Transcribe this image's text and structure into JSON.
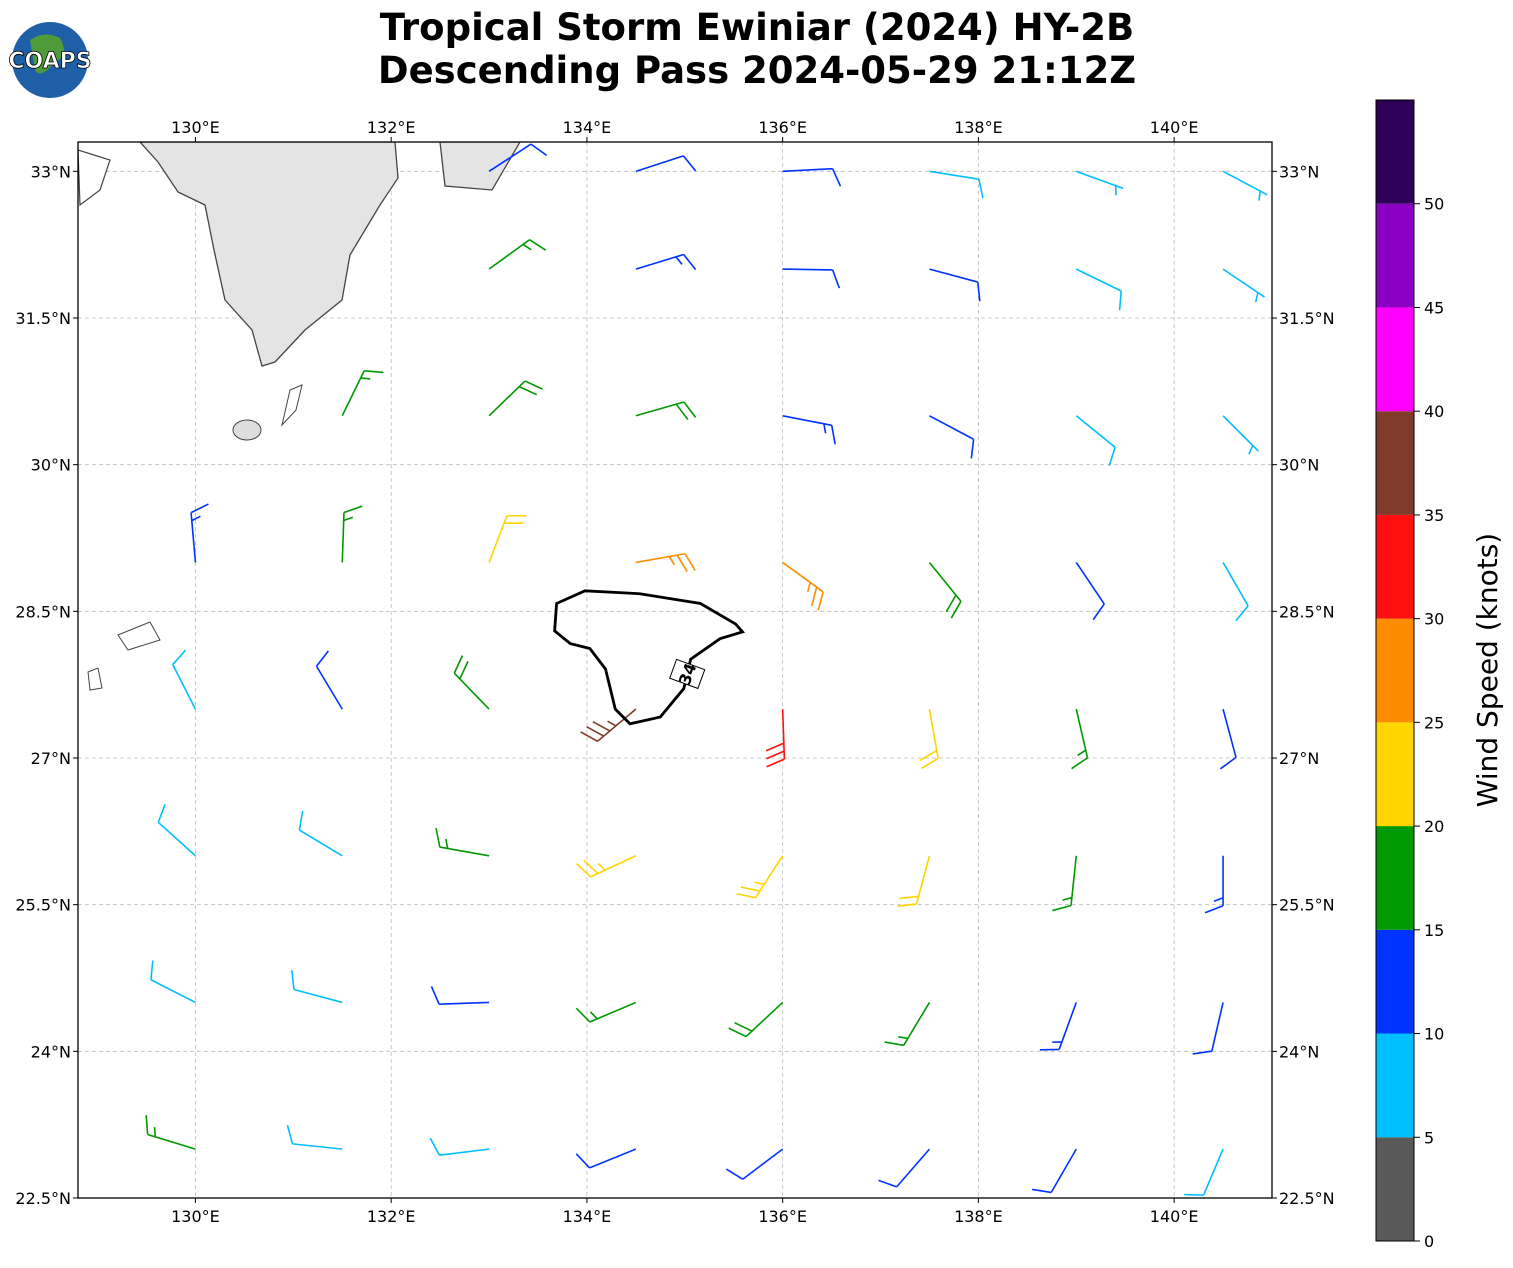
{
  "chart_data": {
    "type": "wind-barb-map",
    "title": "Tropical Storm Ewiniar (2024) HY-2B",
    "subtitle": "Descending Pass 2024-05-29 21:12Z",
    "logo": "COAPS",
    "xlim": [
      128.8,
      141.0
    ],
    "ylim": [
      22.5,
      33.3
    ],
    "xticks": [
      {
        "value": 130,
        "label": "130°E"
      },
      {
        "value": 132,
        "label": "132°E"
      },
      {
        "value": 134,
        "label": "134°E"
      },
      {
        "value": 136,
        "label": "136°E"
      },
      {
        "value": 138,
        "label": "138°E"
      },
      {
        "value": 140,
        "label": "140°E"
      }
    ],
    "yticks": [
      {
        "value": 22.5,
        "label": "22.5°N"
      },
      {
        "value": 24,
        "label": "24°N"
      },
      {
        "value": 25.5,
        "label": "25.5°N"
      },
      {
        "value": 27,
        "label": "27°N"
      },
      {
        "value": 28.5,
        "label": "28.5°N"
      },
      {
        "value": 30,
        "label": "30°N"
      },
      {
        "value": 31.5,
        "label": "31.5°N"
      },
      {
        "value": 33,
        "label": "33°N"
      }
    ],
    "grid": true,
    "wind": {
      "lons": [
        130,
        131.5,
        133,
        134.5,
        136,
        137.5,
        139,
        140.5
      ],
      "lats": [
        33,
        32,
        30.5,
        29,
        27.5,
        26,
        24.5,
        23
      ],
      "speed": [
        [
          null,
          null,
          12,
          12,
          10,
          8,
          6,
          6
        ],
        [
          null,
          null,
          16,
          13,
          12,
          10,
          8,
          6
        ],
        [
          null,
          17,
          19,
          18,
          14,
          12,
          9,
          7
        ],
        [
          13,
          16,
          21,
          26,
          25,
          18,
          12,
          8
        ],
        [
          9,
          12,
          18,
          36,
          31,
          22,
          16,
          11
        ],
        [
          8,
          9,
          17,
          23,
          24,
          21,
          17,
          13
        ],
        [
          9,
          8,
          11,
          16,
          18,
          16,
          13,
          11
        ],
        [
          16,
          9,
          8,
          11,
          12,
          12,
          11,
          9
        ]
      ],
      "direction": [
        [
          null,
          null,
          57,
          72,
          87,
          99,
          110,
          118
        ],
        [
          null,
          null,
          54,
          73,
          91,
          105,
          116,
          124
        ],
        [
          null,
          26,
          46,
          74,
          101,
          118,
          129,
          135
        ],
        [
          355,
          2,
          21,
          80,
          126,
          141,
          146,
          150
        ],
        [
          333,
          329,
          316,
          230,
          178,
          170,
          167,
          165
        ],
        [
          312,
          301,
          280,
          245,
          213,
          195,
          186,
          180
        ],
        [
          297,
          285,
          268,
          247,
          227,
          211,
          200,
          193
        ],
        [
          287,
          276,
          263,
          248,
          233,
          221,
          210,
          203
        ]
      ]
    },
    "contour": {
      "level": 34,
      "lons": [
        133.69,
        133.98,
        134.54,
        135.16,
        135.52,
        135.59,
        135.36,
        135.06,
        134.99,
        134.75,
        134.44,
        134.29,
        134.19,
        134.03,
        133.83,
        133.67
      ],
      "lats": [
        28.58,
        28.71,
        28.68,
        28.58,
        28.37,
        28.29,
        28.22,
        28.01,
        27.71,
        27.42,
        27.35,
        27.5,
        27.91,
        28.12,
        28.17,
        28.3
      ]
    },
    "colorbar": {
      "label": "Wind Speed (knots)",
      "bounds": [
        0,
        5,
        10,
        15,
        20,
        25,
        30,
        35,
        40,
        45,
        50,
        55
      ],
      "colors": [
        "#595959",
        "#00bfff",
        "#0033ff",
        "#009900",
        "#ffd400",
        "#ff8c00",
        "#ff1010",
        "#7f3b29",
        "#ff00ff",
        "#8a00c2",
        "#2e0057"
      ],
      "ticks": [
        0,
        5,
        10,
        15,
        20,
        25,
        30,
        35,
        40,
        45,
        50
      ]
    }
  }
}
